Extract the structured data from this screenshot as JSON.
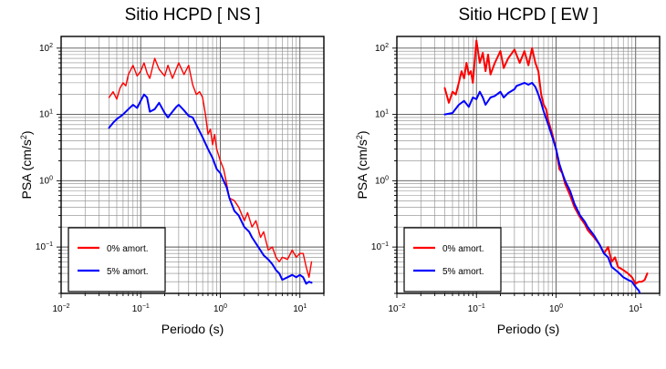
{
  "chart_data": [
    {
      "type": "line",
      "title": "Sitio HCPD [ NS ]",
      "xlabel": "Periodo (s)",
      "ylabel": {
        "base": "PSA (cm/s",
        "sup": "2",
        "tail": ")"
      },
      "xscale": "log",
      "yscale": "log",
      "xlim": [
        0.01,
        20
      ],
      "ylim": [
        0.02,
        150
      ],
      "grid": true,
      "legend_position": "bottom-left",
      "xticks": [
        {
          "value": 0.01,
          "base": "10",
          "exp": "−2"
        },
        {
          "value": 0.1,
          "base": "10",
          "exp": "−1"
        },
        {
          "value": 1,
          "base": "10",
          "exp": "0"
        },
        {
          "value": 10,
          "base": "10",
          "exp": "1"
        }
      ],
      "yticks": [
        {
          "value": 0.1,
          "base": "10",
          "exp": "−1"
        },
        {
          "value": 1,
          "base": "10",
          "exp": "0"
        },
        {
          "value": 10,
          "base": "10",
          "exp": "1"
        },
        {
          "value": 100,
          "base": "10",
          "exp": "2"
        }
      ],
      "series": [
        {
          "name": "0% amort.",
          "color": "#ff0000",
          "width": 1.4,
          "points": [
            [
              0.04,
              18
            ],
            [
              0.045,
              22
            ],
            [
              0.05,
              17
            ],
            [
              0.055,
              25
            ],
            [
              0.06,
              30
            ],
            [
              0.065,
              27
            ],
            [
              0.07,
              40
            ],
            [
              0.08,
              55
            ],
            [
              0.09,
              38
            ],
            [
              0.1,
              45
            ],
            [
              0.11,
              60
            ],
            [
              0.12,
              42
            ],
            [
              0.13,
              35
            ],
            [
              0.15,
              70
            ],
            [
              0.17,
              48
            ],
            [
              0.2,
              38
            ],
            [
              0.22,
              55
            ],
            [
              0.25,
              35
            ],
            [
              0.3,
              60
            ],
            [
              0.35,
              40
            ],
            [
              0.4,
              55
            ],
            [
              0.45,
              28
            ],
            [
              0.5,
              20
            ],
            [
              0.55,
              22
            ],
            [
              0.6,
              18
            ],
            [
              0.65,
              10
            ],
            [
              0.7,
              5
            ],
            [
              0.75,
              6
            ],
            [
              0.8,
              3.5
            ],
            [
              0.85,
              5
            ],
            [
              0.9,
              3
            ],
            [
              1.0,
              2
            ],
            [
              1.1,
              1.5
            ],
            [
              1.2,
              0.9
            ],
            [
              1.3,
              0.55
            ],
            [
              1.5,
              0.5
            ],
            [
              1.7,
              0.4
            ],
            [
              2.0,
              0.25
            ],
            [
              2.2,
              0.33
            ],
            [
              2.5,
              0.2
            ],
            [
              2.8,
              0.25
            ],
            [
              3.2,
              0.14
            ],
            [
              3.5,
              0.17
            ],
            [
              4.0,
              0.09
            ],
            [
              4.5,
              0.1
            ],
            [
              5.0,
              0.07
            ],
            [
              5.5,
              0.06
            ],
            [
              6.0,
              0.07
            ],
            [
              7.0,
              0.065
            ],
            [
              8.0,
              0.09
            ],
            [
              9.0,
              0.07
            ],
            [
              10.0,
              0.08
            ],
            [
              11.0,
              0.08
            ],
            [
              12.0,
              0.05
            ],
            [
              13.0,
              0.035
            ],
            [
              14.0,
              0.06
            ]
          ]
        },
        {
          "name": "5% amort.",
          "color": "#0000ff",
          "width": 2,
          "points": [
            [
              0.04,
              6.3
            ],
            [
              0.045,
              7.5
            ],
            [
              0.05,
              8.5
            ],
            [
              0.06,
              10
            ],
            [
              0.07,
              12
            ],
            [
              0.08,
              14
            ],
            [
              0.09,
              12.5
            ],
            [
              0.1,
              16
            ],
            [
              0.11,
              20
            ],
            [
              0.12,
              18
            ],
            [
              0.13,
              11
            ],
            [
              0.15,
              12
            ],
            [
              0.17,
              15
            ],
            [
              0.2,
              10.5
            ],
            [
              0.22,
              9
            ],
            [
              0.25,
              11
            ],
            [
              0.28,
              13
            ],
            [
              0.3,
              14
            ],
            [
              0.35,
              11.5
            ],
            [
              0.4,
              9.5
            ],
            [
              0.45,
              9
            ],
            [
              0.5,
              7
            ],
            [
              0.6,
              4.5
            ],
            [
              0.7,
              3
            ],
            [
              0.8,
              2.2
            ],
            [
              0.9,
              1.5
            ],
            [
              1.0,
              1.3
            ],
            [
              1.1,
              1.0
            ],
            [
              1.2,
              0.8
            ],
            [
              1.3,
              0.55
            ],
            [
              1.5,
              0.35
            ],
            [
              1.7,
              0.3
            ],
            [
              2.0,
              0.2
            ],
            [
              2.3,
              0.17
            ],
            [
              2.5,
              0.14
            ],
            [
              3.0,
              0.1
            ],
            [
              3.5,
              0.075
            ],
            [
              4.0,
              0.065
            ],
            [
              4.5,
              0.055
            ],
            [
              5.0,
              0.045
            ],
            [
              5.5,
              0.04
            ],
            [
              6.0,
              0.032
            ],
            [
              7.0,
              0.035
            ],
            [
              8.0,
              0.038
            ],
            [
              9.0,
              0.035
            ],
            [
              10.0,
              0.038
            ],
            [
              11.0,
              0.035
            ],
            [
              12.0,
              0.028
            ],
            [
              13.0,
              0.03
            ],
            [
              14.0,
              0.029
            ]
          ]
        }
      ]
    },
    {
      "type": "line",
      "title": "Sitio HCPD [ EW ]",
      "xlabel": "Periodo (s)",
      "ylabel": {
        "base": "PSA (cm/s",
        "sup": "2",
        "tail": ")"
      },
      "xscale": "log",
      "yscale": "log",
      "xlim": [
        0.01,
        20
      ],
      "ylim": [
        0.02,
        150
      ],
      "grid": true,
      "legend_position": "bottom-left",
      "xticks": [
        {
          "value": 0.01,
          "base": "10",
          "exp": "−2"
        },
        {
          "value": 0.1,
          "base": "10",
          "exp": "−1"
        },
        {
          "value": 1,
          "base": "10",
          "exp": "0"
        },
        {
          "value": 10,
          "base": "10",
          "exp": "1"
        }
      ],
      "yticks": [
        {
          "value": 0.1,
          "base": "10",
          "exp": "−1"
        },
        {
          "value": 1,
          "base": "10",
          "exp": "0"
        },
        {
          "value": 10,
          "base": "10",
          "exp": "1"
        },
        {
          "value": 100,
          "base": "10",
          "exp": "2"
        }
      ],
      "series": [
        {
          "name": "0% amort.",
          "color": "#ff0000",
          "width": 2,
          "points": [
            [
              0.04,
              25
            ],
            [
              0.045,
              15
            ],
            [
              0.05,
              22
            ],
            [
              0.055,
              20
            ],
            [
              0.06,
              30
            ],
            [
              0.065,
              45
            ],
            [
              0.07,
              35
            ],
            [
              0.075,
              60
            ],
            [
              0.08,
              40
            ],
            [
              0.085,
              45
            ],
            [
              0.09,
              30
            ],
            [
              0.1,
              130
            ],
            [
              0.11,
              60
            ],
            [
              0.12,
              85
            ],
            [
              0.13,
              45
            ],
            [
              0.14,
              80
            ],
            [
              0.15,
              40
            ],
            [
              0.17,
              60
            ],
            [
              0.2,
              90
            ],
            [
              0.22,
              50
            ],
            [
              0.25,
              70
            ],
            [
              0.3,
              95
            ],
            [
              0.35,
              60
            ],
            [
              0.4,
              90
            ],
            [
              0.45,
              55
            ],
            [
              0.5,
              100
            ],
            [
              0.55,
              60
            ],
            [
              0.6,
              45
            ],
            [
              0.65,
              20
            ],
            [
              0.7,
              14
            ],
            [
              0.75,
              12
            ],
            [
              0.8,
              8
            ],
            [
              0.9,
              5
            ],
            [
              1.0,
              3
            ],
            [
              1.1,
              1.5
            ],
            [
              1.2,
              1.3
            ],
            [
              1.3,
              0.9
            ],
            [
              1.5,
              0.6
            ],
            [
              1.7,
              0.4
            ],
            [
              2.0,
              0.28
            ],
            [
              2.3,
              0.22
            ],
            [
              2.5,
              0.18
            ],
            [
              3.0,
              0.14
            ],
            [
              3.5,
              0.11
            ],
            [
              4.0,
              0.08
            ],
            [
              4.5,
              0.1
            ],
            [
              5.0,
              0.06
            ],
            [
              5.5,
              0.07
            ],
            [
              6.0,
              0.05
            ],
            [
              7.0,
              0.045
            ],
            [
              8.0,
              0.04
            ],
            [
              9.0,
              0.035
            ],
            [
              10.0,
              0.028
            ],
            [
              11.0,
              0.03
            ],
            [
              12.0,
              0.03
            ],
            [
              13.0,
              0.032
            ],
            [
              14.0,
              0.04
            ]
          ]
        },
        {
          "name": "5% amort.",
          "color": "#0000ff",
          "width": 2,
          "points": [
            [
              0.04,
              10
            ],
            [
              0.05,
              10.5
            ],
            [
              0.06,
              14
            ],
            [
              0.07,
              16
            ],
            [
              0.08,
              13
            ],
            [
              0.09,
              18
            ],
            [
              0.1,
              17
            ],
            [
              0.11,
              22
            ],
            [
              0.12,
              18
            ],
            [
              0.13,
              14
            ],
            [
              0.15,
              18
            ],
            [
              0.17,
              19
            ],
            [
              0.2,
              22
            ],
            [
              0.22,
              18
            ],
            [
              0.25,
              21
            ],
            [
              0.3,
              24
            ],
            [
              0.32,
              27
            ],
            [
              0.35,
              28
            ],
            [
              0.4,
              30
            ],
            [
              0.45,
              28
            ],
            [
              0.5,
              30
            ],
            [
              0.55,
              26
            ],
            [
              0.6,
              20
            ],
            [
              0.65,
              15
            ],
            [
              0.7,
              11
            ],
            [
              0.8,
              7
            ],
            [
              0.9,
              4.5
            ],
            [
              1.0,
              3
            ],
            [
              1.1,
              1.8
            ],
            [
              1.2,
              1.3
            ],
            [
              1.3,
              1
            ],
            [
              1.5,
              0.7
            ],
            [
              1.7,
              0.45
            ],
            [
              2.0,
              0.3
            ],
            [
              2.3,
              0.24
            ],
            [
              2.5,
              0.2
            ],
            [
              3.0,
              0.15
            ],
            [
              3.5,
              0.11
            ],
            [
              4.0,
              0.08
            ],
            [
              4.5,
              0.07
            ],
            [
              5.0,
              0.05
            ],
            [
              6.0,
              0.042
            ],
            [
              7.0,
              0.035
            ],
            [
              8.0,
              0.032
            ],
            [
              9.0,
              0.03
            ],
            [
              10.0,
              0.025
            ],
            [
              11.0,
              0.022
            ],
            [
              12.0,
              0.016
            ],
            [
              13.0,
              0.018
            ],
            [
              14.0,
              0.016
            ]
          ]
        }
      ]
    }
  ]
}
